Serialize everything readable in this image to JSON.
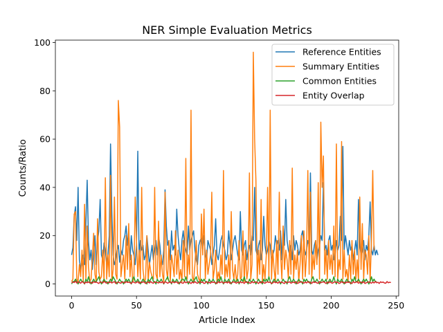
{
  "chart_data": {
    "type": "line",
    "title": "NER Simple Evaluation Metrics",
    "xlabel": "Article Index",
    "ylabel": "Counts/Ratio",
    "xlim": [
      -12.5,
      252
    ],
    "ylim": [
      -5,
      101
    ],
    "xticks": [
      0,
      50,
      100,
      150,
      200,
      250
    ],
    "yticks": [
      0,
      20,
      40,
      60,
      80,
      100
    ],
    "grid": false,
    "legend_position": "top-right",
    "series": [
      {
        "name": "Reference Entities",
        "color": "#1f77b4",
        "values": [
          12,
          15,
          28,
          32,
          18,
          40,
          10,
          6,
          9,
          12,
          8,
          25,
          43,
          18,
          10,
          14,
          6,
          12,
          20,
          8,
          18,
          22,
          35,
          12,
          10,
          17,
          14,
          8,
          12,
          20,
          58,
          30,
          12,
          8,
          10,
          14,
          16,
          9,
          14,
          12,
          18,
          20,
          24,
          16,
          22,
          10,
          20,
          14,
          12,
          8,
          16,
          55,
          12,
          18,
          14,
          16,
          10,
          12,
          20,
          14,
          8,
          12,
          16,
          10,
          14,
          18,
          12,
          20,
          16,
          10,
          8,
          14,
          39,
          24,
          16,
          18,
          10,
          22,
          14,
          16,
          12,
          31,
          20,
          14,
          10,
          18,
          22,
          16,
          14,
          12,
          24,
          14,
          18,
          20,
          22,
          14,
          10,
          8,
          16,
          18,
          19,
          14,
          20,
          12,
          10,
          18,
          16,
          14,
          8,
          12,
          16,
          27,
          12,
          10,
          14,
          18,
          20,
          16,
          14,
          10,
          12,
          22,
          16,
          10,
          14,
          18,
          20,
          16,
          12,
          10,
          30,
          14,
          12,
          16,
          18,
          10,
          14,
          16,
          12,
          20,
          18,
          40,
          14,
          12,
          16,
          18,
          10,
          14,
          28,
          16,
          12,
          14,
          18,
          16,
          10,
          12,
          14,
          20,
          16,
          18,
          14,
          22,
          10,
          24,
          16,
          35,
          18,
          14,
          12,
          16,
          10,
          20,
          14,
          18,
          16,
          12,
          14,
          20,
          22,
          16,
          12,
          14,
          18,
          16,
          46,
          14,
          12,
          16,
          18,
          10,
          14,
          16,
          20,
          18,
          42,
          14,
          16,
          12,
          18,
          20,
          14,
          16,
          10,
          12,
          18,
          14,
          16,
          28,
          18,
          57,
          14,
          20,
          16,
          12,
          18,
          14,
          16,
          10,
          14,
          18,
          12,
          35,
          16,
          12,
          14,
          18,
          10,
          16,
          14,
          20,
          34,
          14,
          12,
          16,
          12,
          14,
          12
        ]
      },
      {
        "name": "Summary Entities",
        "color": "#ff7f0e",
        "values": [
          1,
          2,
          29,
          30,
          2,
          1,
          8,
          3,
          14,
          1,
          33,
          2,
          24,
          7,
          1,
          2,
          11,
          21,
          4,
          1,
          27,
          5,
          2,
          3,
          14,
          1,
          44,
          2,
          12,
          3,
          45,
          1,
          6,
          36,
          4,
          2,
          76,
          65,
          3,
          8,
          12,
          2,
          20,
          6,
          25,
          3,
          12,
          1,
          2,
          36,
          18,
          3,
          14,
          2,
          40,
          6,
          1,
          2,
          20,
          1,
          9,
          5,
          3,
          2,
          40,
          4,
          2,
          26,
          3,
          12,
          4,
          1,
          38,
          6,
          2,
          18,
          1,
          12,
          8,
          3,
          22,
          4,
          14,
          2,
          6,
          1,
          18,
          3,
          52,
          2,
          12,
          4,
          72,
          3,
          1,
          8,
          18,
          4,
          2,
          1,
          29,
          12,
          31,
          2,
          14,
          4,
          8,
          12,
          38,
          2,
          6,
          14,
          1,
          5,
          2,
          12,
          4,
          47,
          2,
          8,
          3,
          12,
          2,
          30,
          6,
          2,
          8,
          1,
          4,
          18,
          2,
          3,
          22,
          1,
          14,
          2,
          6,
          46,
          2,
          8,
          96,
          60,
          43,
          2,
          14,
          4,
          35,
          1,
          8,
          2,
          12,
          40,
          3,
          72,
          2,
          14,
          6,
          1,
          18,
          4,
          38,
          12,
          2,
          24,
          6,
          14,
          10,
          2,
          18,
          4,
          48,
          2,
          12,
          6,
          14,
          1,
          8,
          20,
          2,
          22,
          3,
          12,
          47,
          4,
          38,
          2,
          12,
          6,
          18,
          8,
          42,
          2,
          67,
          40,
          53,
          4,
          14,
          2,
          18,
          6,
          12,
          4,
          24,
          3,
          58,
          2,
          10,
          6,
          59,
          2,
          14,
          3,
          6,
          1,
          12,
          2,
          18,
          4,
          14,
          2,
          10,
          1,
          36,
          6,
          25,
          2,
          14,
          12,
          4,
          20,
          1,
          18,
          47,
          14
        ]
      },
      {
        "name": "Common Entities",
        "color": "#2ca02c",
        "values": [
          0,
          1,
          1,
          2,
          1,
          0,
          1,
          2,
          1,
          1,
          0,
          2,
          1,
          3,
          1,
          0,
          1,
          2,
          1,
          1,
          2,
          3,
          1,
          0,
          1,
          2,
          1,
          1,
          0,
          1,
          2,
          1,
          3,
          2,
          1,
          0,
          1,
          2,
          1,
          1,
          0,
          1,
          2,
          1,
          2,
          1,
          0,
          2,
          3,
          1,
          1,
          2,
          1,
          0,
          1,
          2,
          1,
          1,
          0,
          2,
          1,
          2,
          3,
          1,
          1,
          0,
          2,
          1,
          1,
          2,
          1,
          0,
          1,
          2,
          3,
          1,
          1,
          0,
          2,
          1,
          1,
          2,
          1,
          0,
          1,
          2,
          2,
          1,
          3,
          1,
          0,
          1,
          2,
          1,
          1,
          2,
          3,
          1,
          1,
          0,
          2,
          1,
          2,
          1,
          1,
          0,
          2,
          1,
          1,
          2,
          1,
          0,
          1,
          2,
          1,
          3,
          1,
          0,
          2,
          1,
          1,
          2,
          1,
          0,
          1,
          2,
          1,
          1,
          2,
          0,
          1,
          2,
          1,
          3,
          1,
          1,
          0,
          2,
          1,
          1,
          2,
          1,
          0,
          1,
          2,
          1,
          1,
          0,
          2,
          1,
          2,
          1,
          3,
          1,
          0,
          1,
          2,
          1,
          1,
          2,
          1,
          0,
          1,
          2,
          1,
          1,
          0,
          2,
          3,
          1,
          1,
          2,
          1,
          0,
          1,
          2,
          1,
          1,
          0,
          2,
          1,
          2,
          1,
          1,
          0,
          2,
          3,
          1,
          1,
          2,
          1,
          0,
          1,
          2,
          1,
          1,
          2,
          0,
          1,
          2,
          1,
          1,
          3,
          1,
          0,
          2,
          1,
          1,
          2,
          1,
          0,
          1,
          2,
          1,
          1,
          0,
          2,
          1,
          3,
          1,
          1,
          2,
          1,
          0,
          1,
          2,
          1,
          2,
          1,
          0,
          1,
          3,
          1,
          2,
          1,
          1
        ]
      },
      {
        "name": "Entity Overlap",
        "color": "#d62728",
        "values": [
          0.5,
          0.8,
          0.6,
          1.2,
          0.4,
          0.9,
          0.7,
          0.3,
          1,
          0.6,
          0.2,
          0.8,
          0.5,
          0.9,
          0.4,
          0.7,
          0.3,
          1,
          0.6,
          0.8,
          0.5,
          0.2,
          0.9,
          0.7,
          0.4,
          1.1,
          0.6,
          0.3,
          0.8,
          0.5,
          0.9,
          0.4,
          0.7,
          1,
          0.2,
          0.6,
          0.8,
          0.5,
          0.3,
          0.9,
          0.7,
          0.4,
          1,
          0.6,
          0.8,
          0.5,
          0.2,
          0.9,
          0.7,
          0.4,
          0.6,
          1,
          0.3,
          0.8,
          0.5,
          0.9,
          0.7,
          0.2,
          0.6,
          0.8,
          0.4,
          1,
          0.5,
          0.3,
          0.9,
          0.7,
          0.6,
          0.4,
          0.8,
          0.5,
          1,
          0.2,
          0.9,
          0.7,
          0.3,
          0.6,
          0.8,
          0.4,
          1,
          0.5,
          0.7,
          0.9,
          0.2,
          0.6,
          0.8,
          0.4,
          0.3,
          1,
          0.5,
          0.7,
          0.9,
          0.6,
          0.2,
          0.8,
          0.4,
          1,
          0.5,
          0.3,
          0.7,
          0.9,
          0.6,
          0.8,
          0.2,
          0.4,
          1,
          0.5,
          0.7,
          0.3,
          0.9,
          0.6,
          0.8,
          0.4,
          0.2,
          1,
          0.5,
          0.7,
          0.9,
          0.3,
          0.6,
          0.8,
          0.4,
          1,
          0.2,
          0.5,
          0.7,
          0.9,
          0.6,
          0.3,
          0.8,
          0.4,
          1,
          0.5,
          0.7,
          0.2,
          0.9,
          0.6,
          0.8,
          0.4,
          0.3,
          1,
          0.5,
          0.7,
          0.9,
          0.6,
          0.2,
          0.8,
          0.4,
          1,
          0.5,
          0.3,
          0.7,
          0.9,
          0.6,
          0.8,
          0.2,
          0.4,
          1,
          0.5,
          0.7,
          0.3,
          0.9,
          0.6,
          0.8,
          0.4,
          0.2,
          1,
          0.5,
          0.7,
          0.9,
          0.3,
          0.6,
          0.8,
          0.4,
          1,
          0.2,
          0.5,
          0.7,
          0.9,
          0.6,
          0.3,
          0.8,
          0.4,
          1,
          0.5,
          0.7,
          0.2,
          0.9,
          0.6,
          0.8,
          0.4,
          0.3,
          1,
          0.5,
          0.7,
          0.9,
          0.6,
          0.2,
          0.8,
          0.4,
          1,
          0.5,
          0.3,
          0.7,
          0.9,
          0.6,
          0.8,
          0.2,
          0.4,
          1,
          0.5,
          0.7,
          0.3,
          0.9,
          0.6,
          0.8,
          0.4,
          0.2,
          1,
          0.5,
          0.7,
          0.9,
          0.3,
          0.6,
          0.8,
          0.4,
          1,
          0.2,
          0.5,
          0.7,
          0.9,
          0.6,
          0.3,
          0.8,
          0.4,
          1,
          0.5,
          0.7,
          0.2,
          0.9,
          0.6,
          0.8,
          0.4,
          0.3,
          1,
          0.5,
          0.7,
          0.6
        ]
      }
    ]
  }
}
